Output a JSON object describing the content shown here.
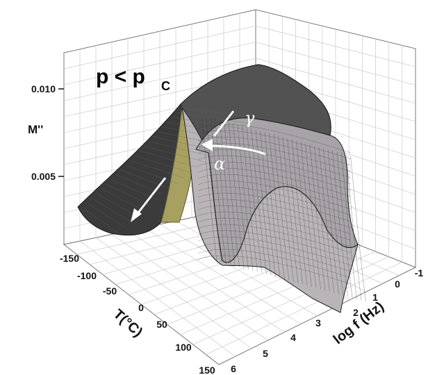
{
  "chart_data": {
    "type": "surface",
    "annotation": {
      "main": "p < p",
      "sub": "C"
    },
    "zlabel": "M''",
    "xlabel": "log f (Hz)",
    "ylabel": "T(°C)",
    "x_ticks": [
      "-1",
      "0",
      "1",
      "2",
      "3",
      "4",
      "5",
      "6"
    ],
    "y_ticks": [
      "-150",
      "-100",
      "-50",
      "0",
      "50",
      "100",
      "150"
    ],
    "z_ticks": [
      "0.005",
      "0.010"
    ],
    "xlim": [
      -1,
      6
    ],
    "ylim": [
      -150,
      150
    ],
    "zlim": [
      0,
      0.012
    ],
    "relaxations": [
      {
        "label": "γ",
        "description": "ridge at low T"
      },
      {
        "label": "α",
        "description": "ridge moving with T"
      }
    ],
    "grid": true,
    "colors": {
      "surface": "#b9b4b8",
      "mesh": "#1a1a1a",
      "slice": "#a8a060",
      "arrows": "#ffffff"
    }
  }
}
